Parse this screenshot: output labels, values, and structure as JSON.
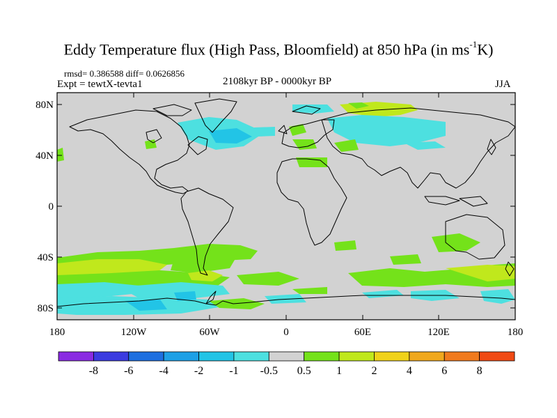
{
  "header": {
    "title_main": "Eddy Temperature flux (High Pass, Bloomfield) at 850 hPa (in ms",
    "title_sup": "-1",
    "title_end": "K)",
    "stats": "rmsd= 0.386588 diff= 0.0626856",
    "experiment": "Expt = tewtX-tevta1",
    "period": "2108kyr BP - 0000kyr BP",
    "season": "JJA"
  },
  "axes": {
    "y_ticks": [
      "80N",
      "40N",
      "0",
      "40S",
      "80S"
    ],
    "x_ticks": [
      "180",
      "120W",
      "60W",
      "0",
      "60E",
      "120E",
      "180"
    ]
  },
  "colorbar": {
    "colors": [
      "#8a2be2",
      "#3b3be0",
      "#1e6fe0",
      "#1ea0e6",
      "#22c4e6",
      "#4de0e0",
      "#d2d2d2",
      "#74e21a",
      "#c0e81c",
      "#f0d21a",
      "#f0a81e",
      "#f07a1e",
      "#f04a14"
    ],
    "labels": [
      "-8",
      "-6",
      "-4",
      "-2",
      "-1",
      "-0.5",
      "0.5",
      "1",
      "2",
      "4",
      "6",
      "8"
    ]
  },
  "colors": {
    "background_field": "#d2d2d2"
  }
}
